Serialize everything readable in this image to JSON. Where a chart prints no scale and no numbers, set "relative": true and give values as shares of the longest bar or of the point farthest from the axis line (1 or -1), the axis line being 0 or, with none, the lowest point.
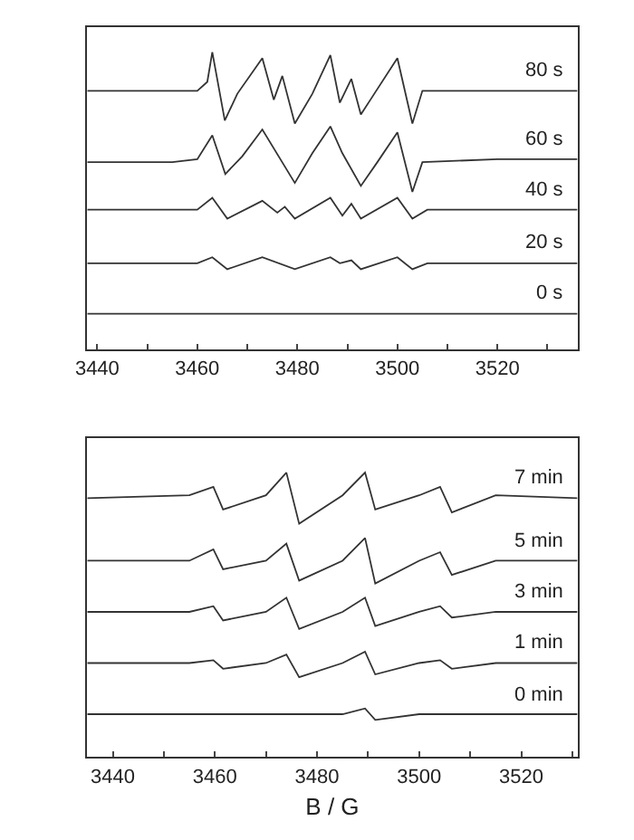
{
  "chart_data": [
    {
      "type": "line",
      "relative": true,
      "tick_labels": "x",
      "marker": "none",
      "line_style": "solid",
      "xlim": [
        3438,
        3536
      ],
      "xticks": [
        3440,
        {
          "value": 3450,
          "label": null
        },
        3460,
        {
          "value": 3470,
          "label": null
        },
        3480,
        {
          "value": 3490,
          "label": null
        },
        3500,
        {
          "value": 3510,
          "label": null
        },
        3520,
        {
          "value": 3530,
          "label": null
        }
      ],
      "series": [
        {
          "name": "80 s",
          "color": "#333333",
          "x": [
            3438,
            3450,
            3460,
            3462,
            3463,
            3465.5,
            3468,
            3473,
            3475.3,
            3477,
            3479.5,
            3483,
            3486.6,
            3488.5,
            3490.8,
            3492.7,
            3495,
            3500,
            3503,
            3505,
            3520,
            3536
          ],
          "values": [
            0.87,
            0.87,
            0.87,
            0.9,
            1.0,
            0.77,
            0.86,
            0.98,
            0.84,
            0.92,
            0.76,
            0.86,
            0.99,
            0.83,
            0.91,
            0.79,
            0.85,
            0.98,
            0.76,
            0.87,
            0.87,
            0.87
          ]
        },
        {
          "name": "60 s",
          "color": "#333333",
          "x": [
            3438,
            3455,
            3460,
            3463,
            3465.6,
            3469,
            3473,
            3479.5,
            3483,
            3486.6,
            3489,
            3492.7,
            3496,
            3500,
            3503,
            3505,
            3520,
            3536
          ],
          "values": [
            0.63,
            0.63,
            0.64,
            0.72,
            0.59,
            0.65,
            0.74,
            0.56,
            0.66,
            0.75,
            0.66,
            0.55,
            0.63,
            0.73,
            0.53,
            0.63,
            0.64,
            0.64
          ]
        },
        {
          "name": "40 s",
          "color": "#333333",
          "x": [
            3438,
            3460,
            3463,
            3466,
            3473,
            3476,
            3477.5,
            3479.5,
            3486.6,
            3489,
            3490.8,
            3492.7,
            3500,
            3503,
            3506,
            3536
          ],
          "values": [
            0.47,
            0.47,
            0.51,
            0.44,
            0.5,
            0.46,
            0.48,
            0.44,
            0.51,
            0.45,
            0.49,
            0.44,
            0.51,
            0.44,
            0.47,
            0.47
          ]
        },
        {
          "name": "20 s",
          "color": "#333333",
          "x": [
            3438,
            3460,
            3463,
            3466,
            3473,
            3479.5,
            3486.6,
            3488.5,
            3490.8,
            3492.7,
            3500,
            3503,
            3506,
            3536
          ],
          "values": [
            0.29,
            0.29,
            0.31,
            0.27,
            0.31,
            0.27,
            0.31,
            0.29,
            0.3,
            0.27,
            0.31,
            0.27,
            0.29,
            0.29
          ]
        },
        {
          "name": "0 s",
          "color": "#333333",
          "x": [
            3438,
            3536
          ],
          "values": [
            0.12,
            0.12
          ]
        }
      ]
    },
    {
      "type": "line",
      "relative": true,
      "tick_labels": "x",
      "marker": "none",
      "line_style": "solid",
      "xlabel": "B / G",
      "xlim": [
        3435,
        3531
      ],
      "xticks": [
        3440,
        {
          "value": 3450,
          "label": null
        },
        3460,
        {
          "value": 3470,
          "label": null
        },
        3480,
        {
          "value": 3490,
          "label": null
        },
        3500,
        {
          "value": 3510,
          "label": null
        },
        3520,
        {
          "value": 3530,
          "label": null
        }
      ],
      "series": [
        {
          "name": "7 min",
          "color": "#333333",
          "x": [
            3435,
            3455,
            3459.7,
            3461.6,
            3470,
            3474,
            3476.5,
            3485,
            3489.4,
            3491.4,
            3500,
            3504.1,
            3506.4,
            3515,
            3531
          ],
          "values": [
            0.91,
            0.92,
            0.95,
            0.87,
            0.92,
            1.0,
            0.82,
            0.92,
            1.0,
            0.87,
            0.92,
            0.95,
            0.86,
            0.92,
            0.91
          ]
        },
        {
          "name": "5 min",
          "color": "#333333",
          "x": [
            3435,
            3455,
            3459.7,
            3461.6,
            3470,
            3474,
            3476.5,
            3485,
            3489.4,
            3491.4,
            3500,
            3504.1,
            3506.4,
            3515,
            3531
          ],
          "values": [
            0.69,
            0.69,
            0.73,
            0.66,
            0.69,
            0.75,
            0.62,
            0.69,
            0.77,
            0.61,
            0.69,
            0.72,
            0.64,
            0.69,
            0.69
          ]
        },
        {
          "name": "3 min",
          "color": "#333333",
          "x": [
            3435,
            3455,
            3459.7,
            3461.6,
            3470,
            3474,
            3476.5,
            3485,
            3489.4,
            3491.4,
            3500,
            3504.1,
            3506.4,
            3515,
            3531
          ],
          "values": [
            0.51,
            0.51,
            0.53,
            0.48,
            0.51,
            0.56,
            0.45,
            0.51,
            0.56,
            0.46,
            0.51,
            0.53,
            0.49,
            0.51,
            0.51
          ]
        },
        {
          "name": "1 min",
          "color": "#333333",
          "x": [
            3435,
            3455,
            3459.7,
            3461.6,
            3470,
            3474,
            3476.5,
            3485,
            3489.4,
            3491.4,
            3500,
            3504.1,
            3506.4,
            3515,
            3531
          ],
          "values": [
            0.33,
            0.33,
            0.34,
            0.31,
            0.33,
            0.36,
            0.28,
            0.33,
            0.37,
            0.29,
            0.33,
            0.34,
            0.31,
            0.33,
            0.33
          ]
        },
        {
          "name": "0 min",
          "color": "#333333",
          "x": [
            3435,
            3485,
            3489.4,
            3491.4,
            3500,
            3531
          ],
          "values": [
            0.15,
            0.15,
            0.17,
            0.13,
            0.15,
            0.15
          ]
        }
      ]
    }
  ]
}
